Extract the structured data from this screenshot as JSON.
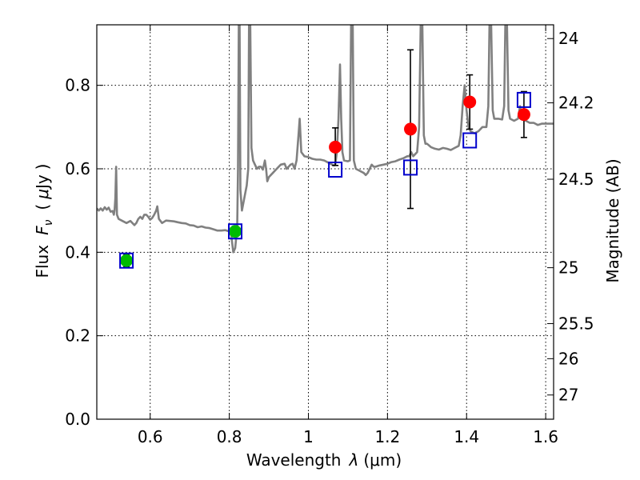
{
  "chart_data": {
    "type": "scatter",
    "xlabel": "Wavelength",
    "xlabel_symbol": "λ",
    "xlabel_unit": "(μm)",
    "ylabel": "Flux",
    "ylabel_symbol": "F",
    "ylabel_subscript": "ν",
    "ylabel_unit_open": "(",
    "ylabel_unit_mu": "μ",
    "ylabel_unit_rest": "Jy",
    "ylabel_unit_close": ")",
    "y2label": "Magnitude (AB)",
    "xlim": [
      0.465,
      1.62
    ],
    "ylim": [
      0.0,
      0.945
    ],
    "grid": true,
    "x_ticks": [
      0.6,
      0.8,
      1.0,
      1.2,
      1.4,
      1.6
    ],
    "x_tick_labels": [
      "0.6",
      "0.8",
      "1",
      "1.2",
      "1.4",
      "1.6"
    ],
    "y_ticks": [
      0.0,
      0.2,
      0.4,
      0.6,
      0.8
    ],
    "y_tick_labels": [
      "0.0",
      "0.2",
      "0.4",
      "0.6",
      "0.8"
    ],
    "y2_ticks": [
      {
        "label": "24",
        "flux": 0.912
      },
      {
        "label": "24.2",
        "flux": 0.758
      },
      {
        "label": "24.5",
        "flux": 0.575
      },
      {
        "label": "25",
        "flux": 0.363
      },
      {
        "label": "25.5",
        "flux": 0.229
      },
      {
        "label": "26",
        "flux": 0.145
      },
      {
        "label": "27",
        "flux": 0.058
      }
    ],
    "series": [
      {
        "kind": "spectrum",
        "color": "#808080",
        "points": [
          [
            0.465,
            0.505
          ],
          [
            0.47,
            0.5
          ],
          [
            0.475,
            0.505
          ],
          [
            0.48,
            0.5
          ],
          [
            0.485,
            0.508
          ],
          [
            0.49,
            0.502
          ],
          [
            0.495,
            0.507
          ],
          [
            0.5,
            0.497
          ],
          [
            0.505,
            0.499
          ],
          [
            0.508,
            0.49
          ],
          [
            0.51,
            0.5
          ],
          [
            0.512,
            0.53
          ],
          [
            0.514,
            0.605
          ],
          [
            0.516,
            0.49
          ],
          [
            0.52,
            0.48
          ],
          [
            0.53,
            0.475
          ],
          [
            0.54,
            0.47
          ],
          [
            0.55,
            0.475
          ],
          [
            0.56,
            0.465
          ],
          [
            0.565,
            0.47
          ],
          [
            0.57,
            0.48
          ],
          [
            0.575,
            0.485
          ],
          [
            0.58,
            0.48
          ],
          [
            0.585,
            0.49
          ],
          [
            0.59,
            0.49
          ],
          [
            0.595,
            0.485
          ],
          [
            0.6,
            0.478
          ],
          [
            0.605,
            0.482
          ],
          [
            0.61,
            0.49
          ],
          [
            0.615,
            0.5
          ],
          [
            0.618,
            0.51
          ],
          [
            0.622,
            0.48
          ],
          [
            0.63,
            0.47
          ],
          [
            0.64,
            0.476
          ],
          [
            0.65,
            0.475
          ],
          [
            0.66,
            0.474
          ],
          [
            0.67,
            0.472
          ],
          [
            0.68,
            0.47
          ],
          [
            0.69,
            0.469
          ],
          [
            0.7,
            0.465
          ],
          [
            0.71,
            0.464
          ],
          [
            0.72,
            0.46
          ],
          [
            0.73,
            0.462
          ],
          [
            0.74,
            0.459
          ],
          [
            0.75,
            0.458
          ],
          [
            0.76,
            0.455
          ],
          [
            0.77,
            0.452
          ],
          [
            0.78,
            0.452
          ],
          [
            0.79,
            0.453
          ],
          [
            0.8,
            0.45
          ],
          [
            0.805,
            0.44
          ],
          [
            0.81,
            0.4
          ],
          [
            0.815,
            0.41
          ],
          [
            0.82,
            0.46
          ],
          [
            0.822,
            0.6
          ],
          [
            0.824,
            0.95
          ],
          [
            0.826,
            0.95
          ],
          [
            0.828,
            0.55
          ],
          [
            0.832,
            0.5
          ],
          [
            0.836,
            0.52
          ],
          [
            0.84,
            0.54
          ],
          [
            0.844,
            0.56
          ],
          [
            0.848,
            0.6
          ],
          [
            0.85,
            0.95
          ],
          [
            0.853,
            0.95
          ],
          [
            0.856,
            0.65
          ],
          [
            0.86,
            0.62
          ],
          [
            0.865,
            0.61
          ],
          [
            0.87,
            0.6
          ],
          [
            0.875,
            0.605
          ],
          [
            0.88,
            0.605
          ],
          [
            0.885,
            0.598
          ],
          [
            0.89,
            0.62
          ],
          [
            0.893,
            0.6
          ],
          [
            0.896,
            0.57
          ],
          [
            0.9,
            0.58
          ],
          [
            0.91,
            0.59
          ],
          [
            0.92,
            0.6
          ],
          [
            0.93,
            0.61
          ],
          [
            0.94,
            0.612
          ],
          [
            0.945,
            0.6
          ],
          [
            0.95,
            0.605
          ],
          [
            0.955,
            0.61
          ],
          [
            0.96,
            0.612
          ],
          [
            0.965,
            0.6
          ],
          [
            0.97,
            0.62
          ],
          [
            0.975,
            0.68
          ],
          [
            0.978,
            0.72
          ],
          [
            0.982,
            0.64
          ],
          [
            0.99,
            0.63
          ],
          [
            1.0,
            0.628
          ],
          [
            1.01,
            0.624
          ],
          [
            1.02,
            0.622
          ],
          [
            1.03,
            0.622
          ],
          [
            1.04,
            0.62
          ],
          [
            1.05,
            0.615
          ],
          [
            1.06,
            0.61
          ],
          [
            1.065,
            0.608
          ],
          [
            1.068,
            0.61
          ],
          [
            1.072,
            0.64
          ],
          [
            1.076,
            0.72
          ],
          [
            1.08,
            0.85
          ],
          [
            1.083,
            0.72
          ],
          [
            1.086,
            0.64
          ],
          [
            1.09,
            0.62
          ],
          [
            1.1,
            0.618
          ],
          [
            1.105,
            0.62
          ],
          [
            1.108,
            0.95
          ],
          [
            1.112,
            0.95
          ],
          [
            1.115,
            0.62
          ],
          [
            1.12,
            0.6
          ],
          [
            1.13,
            0.595
          ],
          [
            1.14,
            0.59
          ],
          [
            1.145,
            0.585
          ],
          [
            1.15,
            0.59
          ],
          [
            1.155,
            0.6
          ],
          [
            1.16,
            0.61
          ],
          [
            1.165,
            0.605
          ],
          [
            1.17,
            0.605
          ],
          [
            1.18,
            0.608
          ],
          [
            1.19,
            0.61
          ],
          [
            1.2,
            0.612
          ],
          [
            1.21,
            0.616
          ],
          [
            1.22,
            0.618
          ],
          [
            1.23,
            0.622
          ],
          [
            1.24,
            0.625
          ],
          [
            1.25,
            0.63
          ],
          [
            1.255,
            0.63
          ],
          [
            1.26,
            0.64
          ],
          [
            1.265,
            0.63
          ],
          [
            1.27,
            0.635
          ],
          [
            1.275,
            0.64
          ],
          [
            1.28,
            0.7
          ],
          [
            1.284,
            0.95
          ],
          [
            1.288,
            0.95
          ],
          [
            1.292,
            0.68
          ],
          [
            1.296,
            0.66
          ],
          [
            1.3,
            0.66
          ],
          [
            1.31,
            0.652
          ],
          [
            1.32,
            0.648
          ],
          [
            1.33,
            0.646
          ],
          [
            1.34,
            0.65
          ],
          [
            1.35,
            0.648
          ],
          [
            1.36,
            0.645
          ],
          [
            1.37,
            0.65
          ],
          [
            1.38,
            0.655
          ],
          [
            1.385,
            0.68
          ],
          [
            1.39,
            0.75
          ],
          [
            1.395,
            0.8
          ],
          [
            1.4,
            0.74
          ],
          [
            1.405,
            0.7
          ],
          [
            1.41,
            0.69
          ],
          [
            1.42,
            0.685
          ],
          [
            1.43,
            0.69
          ],
          [
            1.44,
            0.7
          ],
          [
            1.45,
            0.7
          ],
          [
            1.455,
            0.75
          ],
          [
            1.458,
            0.95
          ],
          [
            1.462,
            0.95
          ],
          [
            1.466,
            0.74
          ],
          [
            1.47,
            0.72
          ],
          [
            1.48,
            0.72
          ],
          [
            1.49,
            0.718
          ],
          [
            1.495,
            0.75
          ],
          [
            1.498,
            0.95
          ],
          [
            1.502,
            0.95
          ],
          [
            1.506,
            0.74
          ],
          [
            1.51,
            0.72
          ],
          [
            1.52,
            0.715
          ],
          [
            1.53,
            0.72
          ],
          [
            1.535,
            0.75
          ],
          [
            1.54,
            0.72
          ],
          [
            1.55,
            0.715
          ],
          [
            1.56,
            0.71
          ],
          [
            1.57,
            0.71
          ],
          [
            1.58,
            0.705
          ],
          [
            1.59,
            0.708
          ],
          [
            1.6,
            0.708
          ],
          [
            1.61,
            0.708
          ],
          [
            1.62,
            0.708
          ]
        ]
      },
      {
        "kind": "model_boxes",
        "color": "#0000cc",
        "x": [
          0.54,
          0.815,
          1.068,
          1.258,
          1.408,
          1.545
        ],
        "y": [
          0.38,
          0.45,
          0.598,
          0.603,
          0.668,
          0.765
        ]
      },
      {
        "kind": "observed_red",
        "color": "#ff0000",
        "x": [
          1.068,
          1.258,
          1.408,
          1.545
        ],
        "y": [
          0.652,
          0.695,
          0.76,
          0.73
        ],
        "yerr_low": [
          0.044,
          0.19,
          0.065,
          0.055
        ],
        "yerr_high": [
          0.046,
          0.19,
          0.065,
          0.055
        ]
      },
      {
        "kind": "observed_green",
        "color": "#00bb00",
        "x": [
          0.54,
          0.815
        ],
        "y": [
          0.38,
          0.45
        ],
        "yerr_low": [
          0.015,
          0.012
        ],
        "yerr_high": [
          0.015,
          0.012
        ]
      }
    ]
  }
}
